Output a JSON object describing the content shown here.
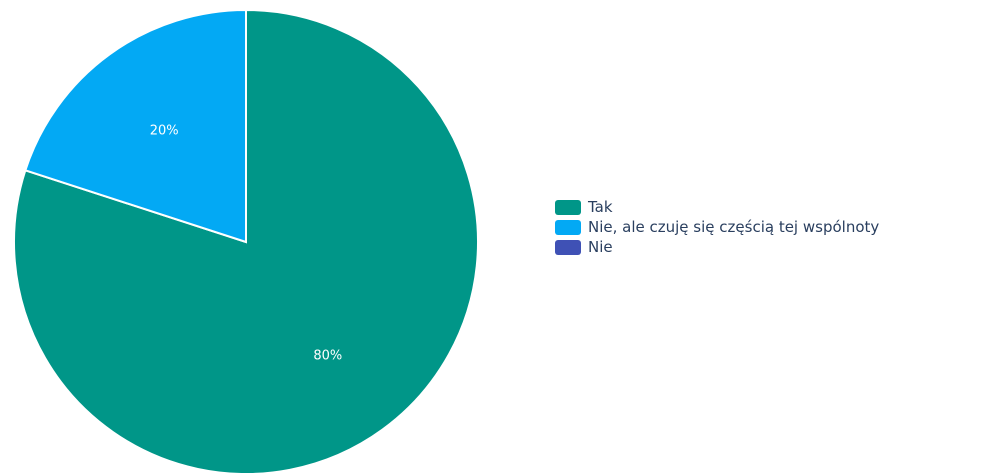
{
  "chart_data": {
    "type": "pie",
    "title": "",
    "slices": [
      {
        "label": "Tak",
        "value": 80,
        "display": "80%",
        "color": "#009688"
      },
      {
        "label": "Nie, ale czuję się częścią tej wspólnoty",
        "value": 20,
        "display": "20%",
        "color": "#03a9f4"
      },
      {
        "label": "Nie",
        "value": 0,
        "display": "",
        "color": "#3f51b5"
      }
    ],
    "legend_position": "right",
    "start_angle_deg": 0,
    "direction": "clockwise"
  }
}
